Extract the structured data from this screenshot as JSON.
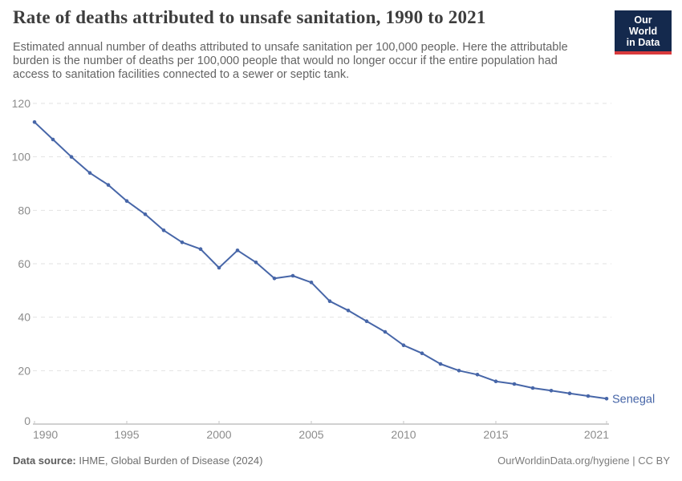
{
  "header": {
    "title": "Rate of deaths attributed to unsafe sanitation, 1990 to 2021",
    "subtitle": "Estimated annual number of deaths attributed to unsafe sanitation per 100,000 people. Here the attributable burden is the number of deaths per 100,000 people that would no longer occur if the entire population had access to sanitation facilities connected to a sewer or septic tank.",
    "logo": {
      "line1": "Our World",
      "line2": "in Data",
      "bg_color": "#14294d",
      "stripe_color": "#d93a3d"
    }
  },
  "chart_data": {
    "type": "line",
    "title": "Rate of deaths attributed to unsafe sanitation, 1990 to 2021",
    "xlabel": "",
    "ylabel": "Deaths per 100,000 people",
    "xlim": [
      1990,
      2021
    ],
    "ylim": [
      0,
      120
    ],
    "x_ticks": [
      1990,
      1995,
      2000,
      2005,
      2010,
      2015,
      2021
    ],
    "y_ticks": [
      0,
      20,
      40,
      60,
      80,
      100,
      120
    ],
    "grid": "horizontal-dashed",
    "legend_position": "end-of-line",
    "x": [
      1990,
      1991,
      1992,
      1993,
      1994,
      1995,
      1996,
      1997,
      1998,
      1999,
      2000,
      2001,
      2002,
      2003,
      2004,
      2005,
      2006,
      2007,
      2008,
      2009,
      2010,
      2011,
      2012,
      2013,
      2014,
      2015,
      2016,
      2017,
      2018,
      2019,
      2020,
      2021
    ],
    "series": [
      {
        "name": "Senegal",
        "color": "#4766a8",
        "values": [
          113,
          106.5,
          100,
          94,
          89.5,
          83.5,
          78.5,
          72.5,
          68,
          65.5,
          58.5,
          65,
          60.5,
          54.5,
          55.5,
          53,
          46,
          42.5,
          38.5,
          34.5,
          29.5,
          26.5,
          22.5,
          20,
          18.5,
          16,
          15,
          13.5,
          12.5,
          11.5,
          10.5,
          9.5
        ]
      }
    ],
    "axis_colors": {
      "baseline": "#a3a3a3",
      "tick": "#c6c6c6",
      "gridline": "#e2e2e2",
      "tick_label": "#8c8c8c"
    }
  },
  "footer": {
    "datasource_label": "Data source:",
    "datasource_value": " IHME, Global Burden of Disease (2024)",
    "link": "OurWorldinData.org/hygiene",
    "separator": " | ",
    "license": "CC BY"
  }
}
